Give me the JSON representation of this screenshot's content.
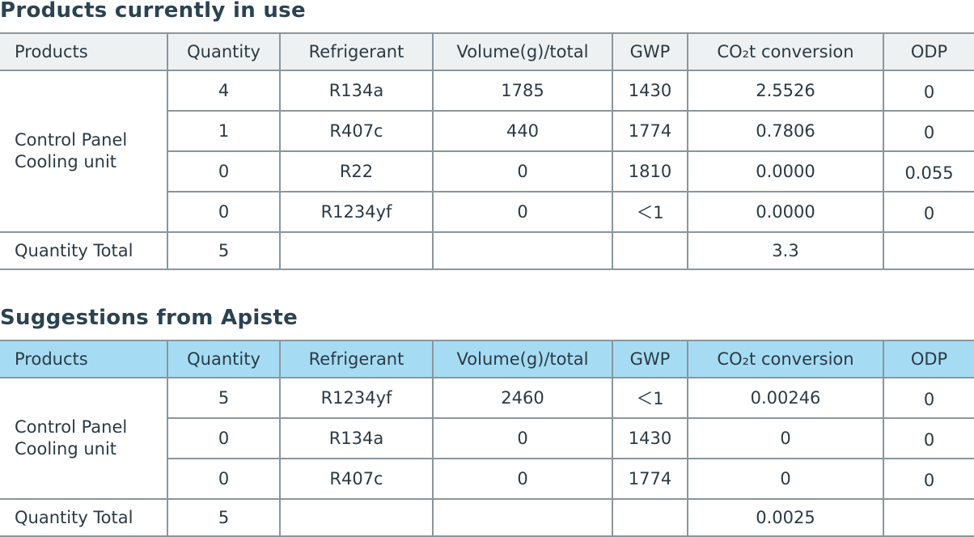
{
  "current": {
    "title": "Products currently in use",
    "headers": [
      "Products",
      "Quantity",
      "Refrigerant",
      "Volume(g)/total",
      "GWP",
      "CO₂t conversion",
      "ODP"
    ],
    "group_label": [
      "Control Panel",
      "Cooling unit"
    ],
    "rows": [
      {
        "quantity": "4",
        "refrigerant": "R134a",
        "volume": "1785",
        "gwp": "1430",
        "co2t": "2.5526",
        "odp": "0"
      },
      {
        "quantity": "1",
        "refrigerant": "R407c",
        "volume": "440",
        "gwp": "1774",
        "co2t": "0.7806",
        "odp": "0"
      },
      {
        "quantity": "0",
        "refrigerant": "R22",
        "volume": "0",
        "gwp": "1810",
        "co2t": "0.0000",
        "odp": "0.055"
      },
      {
        "quantity": "0",
        "refrigerant": "R1234yf",
        "volume": "0",
        "gwp": "＜1",
        "co2t": "0.0000",
        "odp": "0"
      }
    ],
    "total": {
      "label": "Quantity Total",
      "quantity": "5",
      "co2t": "3.3"
    }
  },
  "suggested": {
    "title": "Suggestions from Apiste",
    "headers": [
      "Products",
      "Quantity",
      "Refrigerant",
      "Volume(g)/total",
      "GWP",
      "CO₂t conversion",
      "ODP"
    ],
    "group_label": [
      "Control Panel",
      "Cooling unit"
    ],
    "rows": [
      {
        "quantity": "5",
        "refrigerant": "R1234yf",
        "volume": "2460",
        "gwp": "＜1",
        "co2t": "0.00246",
        "odp": "0"
      },
      {
        "quantity": "0",
        "refrigerant": "R134a",
        "volume": "0",
        "gwp": "1430",
        "co2t": "0",
        "odp": "0"
      },
      {
        "quantity": "0",
        "refrigerant": "R407c",
        "volume": "0",
        "gwp": "1774",
        "co2t": "0",
        "odp": "0"
      }
    ],
    "total": {
      "label": "Quantity Total",
      "quantity": "5",
      "co2t": "0.0025"
    }
  }
}
